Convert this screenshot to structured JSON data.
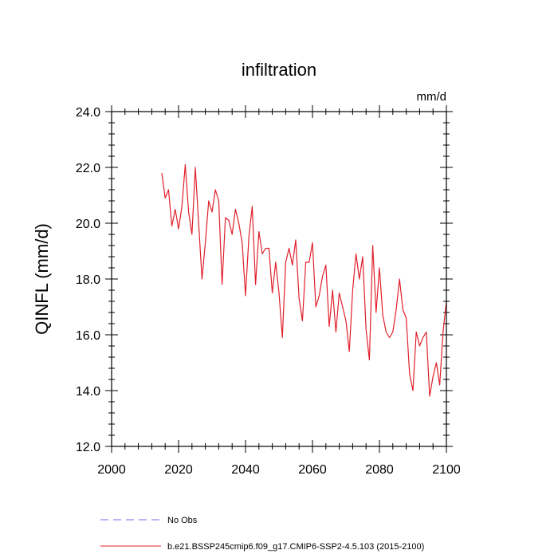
{
  "chart_data": {
    "type": "line",
    "title": "infiltration",
    "units": "mm/d",
    "xlabel": "",
    "ylabel": "QINFL  (mm/d)",
    "xlim": [
      2000,
      2100
    ],
    "ylim": [
      12.0,
      24.0
    ],
    "x_ticks": [
      2000,
      2020,
      2040,
      2060,
      2080,
      2100
    ],
    "x_tick_labels": [
      "2000",
      "2020",
      "2040",
      "2060",
      "2080",
      "2100"
    ],
    "y_ticks": [
      12.0,
      14.0,
      16.0,
      18.0,
      20.0,
      22.0,
      24.0
    ],
    "y_tick_labels": [
      "12.0",
      "14.0",
      "16.0",
      "18.0",
      "20.0",
      "22.0",
      "24.0"
    ],
    "y_minor_step": 0.4,
    "x_minor_step": 4,
    "legend_position": "bottom-left",
    "series": [
      {
        "name": "b.e21.BSSP245cmip6.f09_g17.CMIP6-SSP2-4.5.103 (2015-2100)",
        "color": "#e0202a",
        "style": "solid",
        "x": [
          2015,
          2016,
          2017,
          2018,
          2019,
          2020,
          2021,
          2022,
          2023,
          2024,
          2025,
          2026,
          2027,
          2028,
          2029,
          2030,
          2031,
          2032,
          2033,
          2034,
          2035,
          2036,
          2037,
          2038,
          2039,
          2040,
          2041,
          2042,
          2043,
          2044,
          2045,
          2046,
          2047,
          2048,
          2049,
          2050,
          2051,
          2052,
          2053,
          2054,
          2055,
          2056,
          2057,
          2058,
          2059,
          2060,
          2061,
          2062,
          2063,
          2064,
          2065,
          2066,
          2067,
          2068,
          2069,
          2070,
          2071,
          2072,
          2073,
          2074,
          2075,
          2076,
          2077,
          2078,
          2079,
          2080,
          2081,
          2082,
          2083,
          2084,
          2085,
          2086,
          2087,
          2088,
          2089,
          2090,
          2091,
          2092,
          2093,
          2094,
          2095,
          2096,
          2097,
          2098,
          2099,
          2100
        ],
        "values": [
          21.8,
          20.9,
          21.2,
          19.9,
          20.5,
          19.8,
          20.6,
          22.1,
          20.4,
          19.6,
          22.0,
          20.0,
          18.0,
          19.3,
          20.8,
          20.4,
          21.2,
          20.8,
          17.8,
          20.2,
          20.1,
          19.6,
          20.5,
          20.0,
          19.3,
          17.4,
          19.5,
          20.6,
          17.8,
          19.7,
          18.9,
          19.1,
          19.1,
          17.5,
          18.6,
          17.5,
          15.9,
          18.6,
          19.1,
          18.5,
          19.4,
          17.3,
          16.5,
          18.6,
          18.6,
          19.3,
          17.0,
          17.4,
          18.1,
          18.5,
          16.3,
          17.6,
          16.1,
          17.5,
          17.0,
          16.5,
          15.4,
          17.6,
          18.9,
          18.0,
          18.8,
          16.2,
          15.1,
          19.2,
          16.8,
          18.4,
          16.7,
          16.1,
          15.9,
          16.1,
          16.9,
          18.0,
          16.9,
          16.6,
          14.6,
          14.0,
          16.1,
          15.6,
          15.9,
          16.1,
          13.8,
          14.5,
          15.0,
          14.2,
          16.1,
          17.2
        ]
      },
      {
        "name": "No Obs",
        "color": "#6d6df0",
        "style": "dashed",
        "x": [],
        "values": []
      }
    ]
  }
}
